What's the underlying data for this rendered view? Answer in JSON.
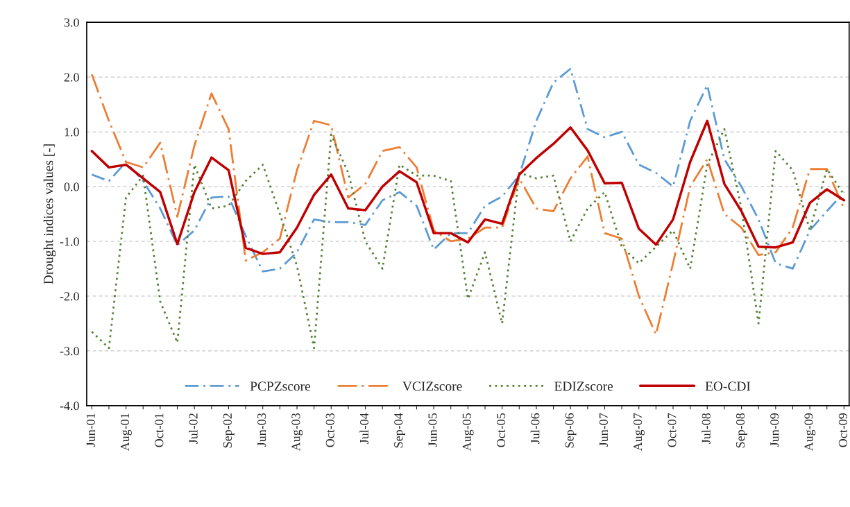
{
  "chart_data": {
    "type": "line",
    "ylabel": "Drought indices values [-]",
    "categories": [
      "Jun-01",
      null,
      "Aug-01",
      null,
      "Oct-01",
      null,
      "Jul-02",
      null,
      "Sep-02",
      null,
      "Jun-03",
      null,
      "Aug-03",
      null,
      "Oct-03",
      null,
      "Jul-04",
      null,
      "Sep-04",
      null,
      "Jun-05",
      null,
      "Aug-05",
      null,
      "Oct-05",
      null,
      "Jul-06",
      null,
      "Sep-06",
      null,
      "Jun-07",
      null,
      "Aug-07",
      null,
      "Oct-07",
      null,
      "Jul-08",
      null,
      "Sep-08",
      null,
      "Jun-09",
      null,
      "Aug-09",
      null,
      "Oct-09"
    ],
    "series": [
      {
        "name": "PCPZscore",
        "color": "#5b9bd5",
        "line_style": "dashdot",
        "values": [
          0.22,
          0.1,
          0.45,
          0.1,
          -0.4,
          -1.07,
          -0.8,
          -0.2,
          -0.18,
          -0.9,
          -1.55,
          -1.5,
          -1.2,
          -0.6,
          -0.65,
          -0.65,
          -0.7,
          -0.25,
          -0.1,
          -0.35,
          -1.15,
          -0.85,
          -0.85,
          -0.35,
          -0.18,
          0.2,
          1.2,
          1.9,
          2.15,
          1.05,
          0.9,
          1.0,
          0.4,
          0.25,
          0.0,
          1.2,
          1.85,
          0.5,
          0.0,
          -0.6,
          -1.4,
          -1.5,
          -0.8,
          -0.45,
          -0.1
        ]
      },
      {
        "name": "VCIZscore",
        "color": "#ed7d31",
        "line_style": "longdashdot",
        "values": [
          2.05,
          1.2,
          0.45,
          0.35,
          0.8,
          -0.55,
          0.75,
          1.7,
          1.05,
          -1.35,
          -1.2,
          -0.95,
          0.3,
          1.2,
          1.12,
          -0.2,
          0.05,
          0.65,
          0.72,
          0.35,
          -0.8,
          -1.0,
          -0.95,
          -0.75,
          -0.75,
          0.15,
          -0.4,
          -0.45,
          0.15,
          0.55,
          -0.85,
          -0.95,
          -2.0,
          -2.7,
          -1.4,
          0.0,
          0.5,
          -0.5,
          -0.75,
          -1.25,
          -1.2,
          -0.75,
          0.32,
          0.32,
          -0.4
        ]
      },
      {
        "name": "EDIZscore",
        "color": "#548235",
        "line_style": "dotted",
        "values": [
          -2.65,
          -2.95,
          -0.2,
          0.2,
          -2.1,
          -2.85,
          0.4,
          -0.4,
          -0.35,
          0.1,
          0.4,
          -0.5,
          -1.45,
          -2.95,
          0.95,
          0.25,
          -1.0,
          -1.5,
          0.4,
          0.2,
          0.2,
          0.1,
          -2.05,
          -1.2,
          -2.5,
          0.25,
          0.15,
          0.2,
          -1.0,
          -0.4,
          -0.1,
          -1.1,
          -1.4,
          -1.1,
          -0.8,
          -1.5,
          0.4,
          1.05,
          -0.4,
          -2.5,
          0.65,
          0.3,
          -0.8,
          0.32,
          -0.15
        ]
      },
      {
        "name": "EO-CDI",
        "color": "#c00000",
        "line_style": "solid",
        "values": [
          0.65,
          0.35,
          0.4,
          0.15,
          -0.1,
          -1.05,
          -0.1,
          0.53,
          0.3,
          -1.12,
          -1.23,
          -1.2,
          -0.75,
          -0.15,
          0.22,
          -0.4,
          -0.43,
          0.0,
          0.28,
          0.08,
          -0.85,
          -0.85,
          -1.02,
          -0.6,
          -0.68,
          0.22,
          0.52,
          0.78,
          1.08,
          0.66,
          0.06,
          0.07,
          -0.77,
          -1.06,
          -0.6,
          0.45,
          1.2,
          0.05,
          -0.45,
          -1.1,
          -1.11,
          -1.02,
          -0.3,
          -0.05,
          -0.25
        ]
      }
    ],
    "ylim": [
      -4,
      3
    ],
    "yticks": [
      {
        "value": -4,
        "label": "-4.0"
      },
      {
        "value": -3,
        "label": "-3.0"
      },
      {
        "value": -2,
        "label": "-2.0"
      },
      {
        "value": -1,
        "label": "-1.0"
      },
      {
        "value": 0,
        "label": "0.0"
      },
      {
        "value": 1,
        "label": "1.0"
      },
      {
        "value": 2,
        "label": "2.0"
      },
      {
        "value": 3,
        "label": "3.0"
      }
    ],
    "grid": "y",
    "legend": "bottom",
    "marker": "none"
  }
}
